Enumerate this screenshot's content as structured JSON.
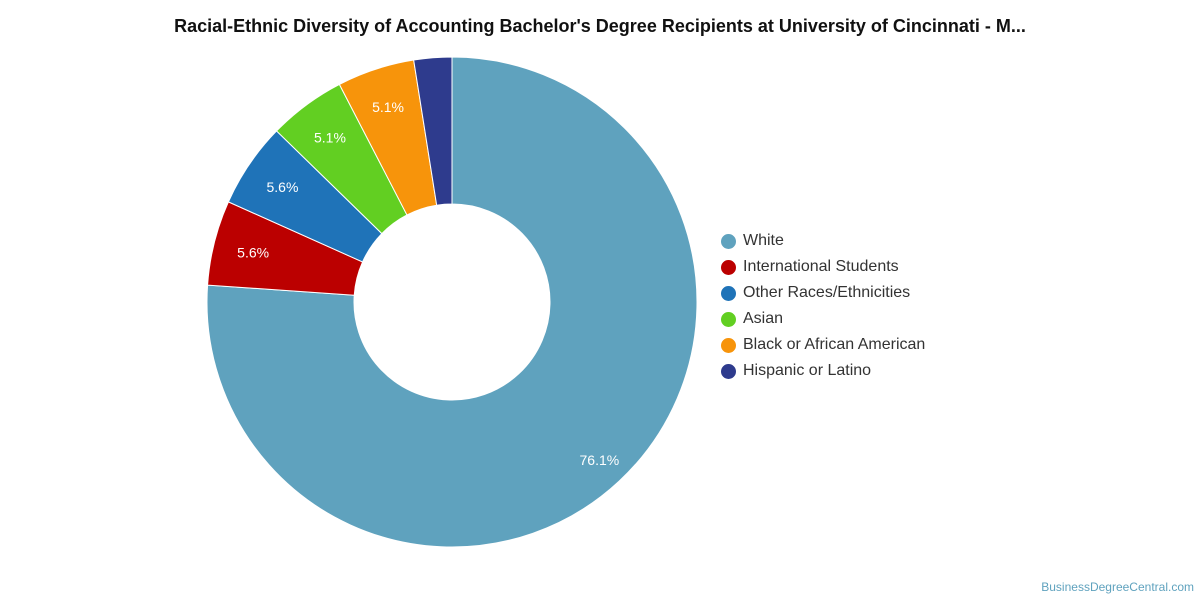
{
  "chart_data": {
    "type": "pie",
    "title": "Racial-Ethnic Diversity of Accounting Bachelor's Degree Recipients at University of Cincinnati - M...",
    "legend_position": "right",
    "donut": true,
    "slices": [
      {
        "label": "White",
        "value": 76.1,
        "value_label": "76.1%",
        "color": "#5fa2be"
      },
      {
        "label": "International Students",
        "value": 5.6,
        "value_label": "5.6%",
        "color": "#bb0000"
      },
      {
        "label": "Other Races/Ethnicities",
        "value": 5.6,
        "value_label": "5.6%",
        "color": "#1f73b8"
      },
      {
        "label": "Asian",
        "value": 5.1,
        "value_label": "5.1%",
        "color": "#62cf22"
      },
      {
        "label": "Black or African American",
        "value": 5.1,
        "value_label": "5.1%",
        "color": "#f7940b"
      },
      {
        "label": "Hispanic or Latino",
        "value": 2.5,
        "value_label": "",
        "color": "#2e3b8d"
      }
    ]
  },
  "watermark": "BusinessDegreeCentral.com"
}
